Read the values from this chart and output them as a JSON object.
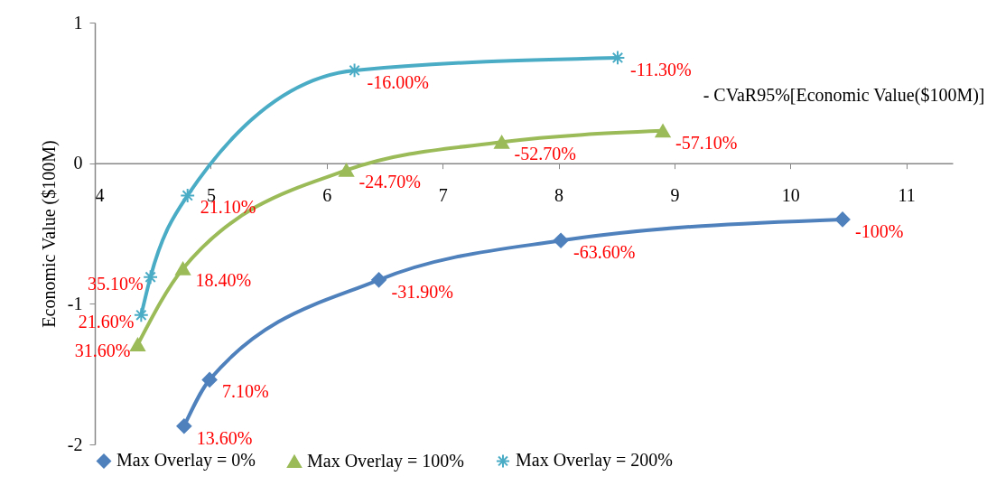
{
  "chart_data": {
    "type": "line",
    "xlabel": "- CVaR95%[Economic Value($100M)]",
    "ylabel": "Economic Value ($100M)",
    "xlim": [
      4,
      11.4
    ],
    "ylim": [
      -2,
      1
    ],
    "xticks": [
      4,
      5,
      6,
      7,
      8,
      9,
      10,
      11
    ],
    "yticks": [
      -2,
      -1,
      0,
      1
    ],
    "legend": "bottom",
    "series": [
      {
        "name": "Max Overlay = 0%",
        "color": "#4f81bd",
        "marker": "diamond",
        "x": [
          4.77,
          4.99,
          6.45,
          8.02,
          10.45
        ],
        "values": [
          -1.87,
          -1.54,
          -0.83,
          -0.55,
          -0.4
        ]
      },
      {
        "name": "Max Overlay = 100%",
        "color": "#9bbb59",
        "marker": "triangle",
        "x": [
          4.37,
          4.76,
          6.17,
          7.51,
          8.9
        ],
        "values": [
          -1.29,
          -0.75,
          -0.05,
          0.15,
          0.23
        ]
      },
      {
        "name": "Max Overlay = 200%",
        "color": "#4bacc6",
        "marker": "cross",
        "x": [
          4.4,
          4.48,
          4.8,
          6.24,
          8.51
        ],
        "values": [
          -1.08,
          -0.81,
          -0.23,
          0.66,
          0.75
        ]
      }
    ],
    "annotations": [
      {
        "text": "13.60%",
        "x": 4.77,
        "y": -1.87
      },
      {
        "text": "7.10%",
        "x": 4.99,
        "y": -1.54
      },
      {
        "text": "-31.90%",
        "x": 6.45,
        "y": -0.83
      },
      {
        "text": "-63.60%",
        "x": 8.02,
        "y": -0.55
      },
      {
        "text": "-100%",
        "x": 10.45,
        "y": -0.4
      },
      {
        "text": "31.60%",
        "x": 4.37,
        "y": -1.29
      },
      {
        "text": "18.40%",
        "x": 4.76,
        "y": -0.75
      },
      {
        "text": "-24.70%",
        "x": 6.17,
        "y": -0.05
      },
      {
        "text": "-52.70%",
        "x": 7.51,
        "y": 0.15
      },
      {
        "text": "-57.10%",
        "x": 8.9,
        "y": 0.23
      },
      {
        "text": "21.60%",
        "x": 4.4,
        "y": -1.08
      },
      {
        "text": "35.10%",
        "x": 4.48,
        "y": -0.81
      },
      {
        "text": "21.10%",
        "x": 4.8,
        "y": -0.23
      },
      {
        "text": "-16.00%",
        "x": 6.24,
        "y": 0.66
      },
      {
        "text": "-11.30%",
        "x": 8.51,
        "y": 0.75
      }
    ]
  }
}
